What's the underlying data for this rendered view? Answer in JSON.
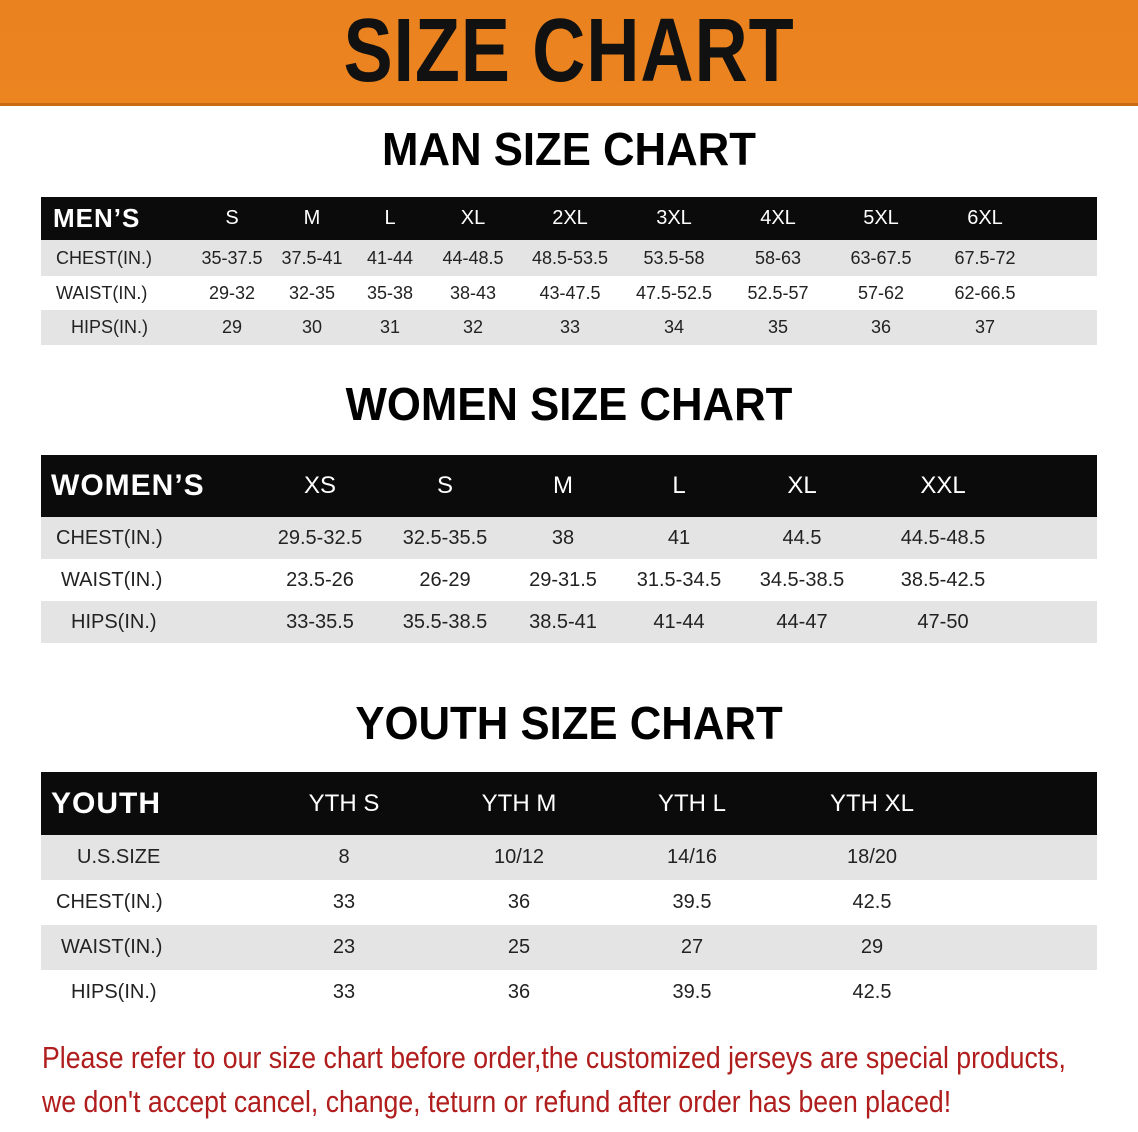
{
  "banner_title": "SIZE CHART",
  "men": {
    "title": "MAN SIZE CHART",
    "header": [
      "MEN’S",
      "S",
      "M",
      "L",
      "XL",
      "2XL",
      "3XL",
      "4XL",
      "5XL",
      "6XL"
    ],
    "rows": [
      [
        "CHEST(IN.)",
        "35-37.5",
        "37.5-41",
        "41-44",
        "44-48.5",
        "48.5-53.5",
        "53.5-58",
        "58-63",
        "63-67.5",
        "67.5-72"
      ],
      [
        "WAIST(IN.)",
        "29-32",
        "32-35",
        "35-38",
        "38-43",
        "43-47.5",
        "47.5-52.5",
        "52.5-57",
        "57-62",
        "62-66.5"
      ],
      [
        "HIPS(IN.)",
        "29",
        "30",
        "31",
        "32",
        "33",
        "34",
        "35",
        "36",
        "37"
      ]
    ]
  },
  "women": {
    "title": "WOMEN SIZE CHART",
    "header": [
      "WOMEN’S",
      "XS",
      "S",
      "M",
      "L",
      "XL",
      "XXL"
    ],
    "rows": [
      [
        "CHEST(IN.)",
        "29.5-32.5",
        "32.5-35.5",
        "38",
        "41",
        "44.5",
        "44.5-48.5"
      ],
      [
        "WAIST(IN.)",
        "23.5-26",
        "26-29",
        "29-31.5",
        "31.5-34.5",
        "34.5-38.5",
        "38.5-42.5"
      ],
      [
        "HIPS(IN.)",
        "33-35.5",
        "35.5-38.5",
        "38.5-41",
        "41-44",
        "44-47",
        "47-50"
      ]
    ]
  },
  "youth": {
    "title": "YOUTH SIZE CHART",
    "header": [
      "YOUTH",
      "YTH S",
      "YTH M",
      "YTH L",
      "YTH XL"
    ],
    "rows": [
      [
        "U.S.SIZE",
        "8",
        "10/12",
        "14/16",
        "18/20"
      ],
      [
        "CHEST(IN.)",
        "33",
        "36",
        "39.5",
        "42.5"
      ],
      [
        "WAIST(IN.)",
        "23",
        "25",
        "27",
        "29"
      ],
      [
        "HIPS(IN.)",
        "33",
        "36",
        "39.5",
        "42.5"
      ]
    ]
  },
  "notice": {
    "line1": "Please refer to our size chart before order,the customized jerseys are special products,",
    "line2": "we don't accept cancel, change, teturn or refund after order has been placed!"
  },
  "colors": {
    "banner": "#ec8420",
    "header_row": "#0b0b0b",
    "shaded_row": "#e4e4e4",
    "notice": "#b01d1d"
  }
}
